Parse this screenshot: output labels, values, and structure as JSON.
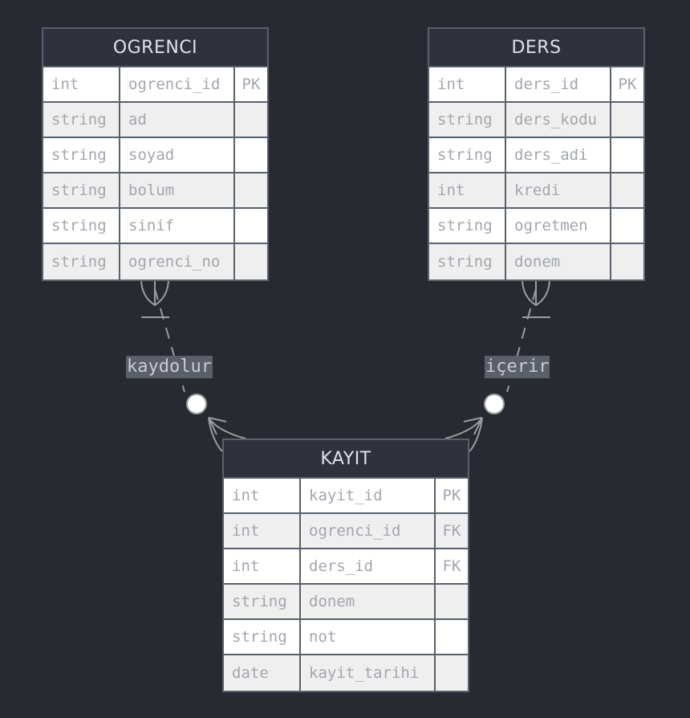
{
  "entities": {
    "ogrenci": {
      "title": "OGRENCI",
      "attributes": [
        {
          "type": "int",
          "name": "ogrenci_id",
          "key": "PK"
        },
        {
          "type": "string",
          "name": "ad",
          "key": ""
        },
        {
          "type": "string",
          "name": "soyad",
          "key": ""
        },
        {
          "type": "string",
          "name": "bolum",
          "key": ""
        },
        {
          "type": "string",
          "name": "sinif",
          "key": ""
        },
        {
          "type": "string",
          "name": "ogrenci_no",
          "key": ""
        }
      ]
    },
    "ders": {
      "title": "DERS",
      "attributes": [
        {
          "type": "int",
          "name": "ders_id",
          "key": "PK"
        },
        {
          "type": "string",
          "name": "ders_kodu",
          "key": ""
        },
        {
          "type": "string",
          "name": "ders_adi",
          "key": ""
        },
        {
          "type": "int",
          "name": "kredi",
          "key": ""
        },
        {
          "type": "string",
          "name": "ogretmen",
          "key": ""
        },
        {
          "type": "string",
          "name": "donem",
          "key": ""
        }
      ]
    },
    "kayit": {
      "title": "KAYIT",
      "attributes": [
        {
          "type": "int",
          "name": "kayit_id",
          "key": "PK"
        },
        {
          "type": "int",
          "name": "ogrenci_id",
          "key": "FK"
        },
        {
          "type": "int",
          "name": "ders_id",
          "key": "FK"
        },
        {
          "type": "string",
          "name": "donem",
          "key": ""
        },
        {
          "type": "string",
          "name": "not",
          "key": ""
        },
        {
          "type": "date",
          "name": "kayit_tarihi",
          "key": ""
        }
      ]
    }
  },
  "relationships": {
    "ogrenci_kayit": {
      "label": "kaydolur",
      "from": "OGRENCI",
      "to": "KAYIT",
      "from_cardinality": "exactly-one",
      "to_cardinality": "zero-or-more"
    },
    "ders_kayit": {
      "label": "içerir",
      "from": "DERS",
      "to": "KAYIT",
      "from_cardinality": "exactly-one",
      "to_cardinality": "zero-or-more"
    }
  },
  "colors": {
    "background": "#282a31",
    "header": "#2f323c",
    "border": "#59606e",
    "row_odd": "#ffffff",
    "row_even": "#efefef",
    "text": "#a2a6ad",
    "line": "#9a9ca2",
    "label_bg": "#5b5f6a"
  }
}
